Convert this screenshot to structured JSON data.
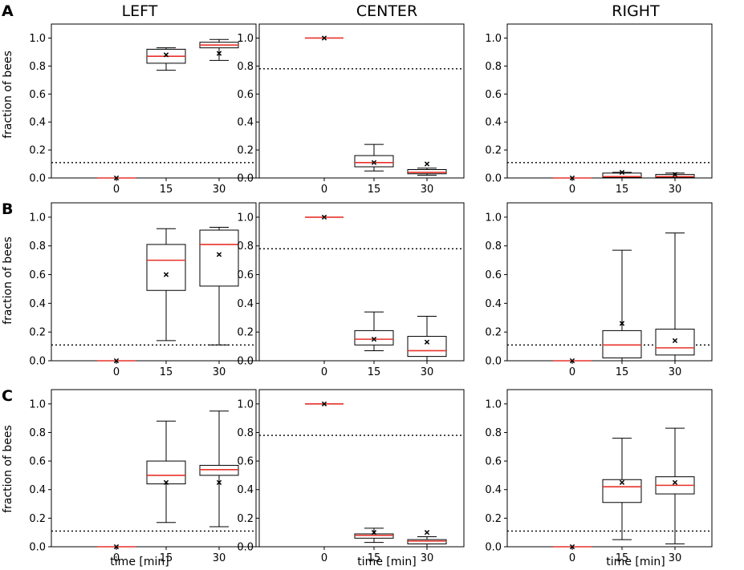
{
  "figure": {
    "column_titles": [
      "LEFT",
      "CENTER",
      "RIGHT"
    ],
    "row_labels": [
      "A",
      "B",
      "C"
    ],
    "ylabel": "fraction of bees",
    "xlabel": "time [min]"
  },
  "colors": {
    "median": "#e8322a",
    "box": "#000000"
  },
  "chart_data": [
    {
      "type": "box",
      "row": "A",
      "title": "LEFT",
      "ylabel": "fraction of bees",
      "xlabel": "",
      "categories": [
        "0",
        "15",
        "30"
      ],
      "ylim": [
        0,
        1.1
      ],
      "yticks": [
        "0.0",
        "0.2",
        "0.4",
        "0.6",
        "0.8",
        "1.0"
      ],
      "ref_line": 0.11,
      "boxes": [
        {
          "label": "0",
          "whislo": 0,
          "q1": 0,
          "med": 0,
          "q3": 0,
          "whishi": 0,
          "mean": 0
        },
        {
          "label": "15",
          "whislo": 0.77,
          "q1": 0.82,
          "med": 0.87,
          "q3": 0.92,
          "whishi": 0.93,
          "mean": 0.88
        },
        {
          "label": "30",
          "whislo": 0.84,
          "q1": 0.93,
          "med": 0.95,
          "q3": 0.97,
          "whishi": 0.99,
          "mean": 0.89
        }
      ]
    },
    {
      "type": "box",
      "row": "A",
      "title": "CENTER",
      "ylabel": "",
      "xlabel": "",
      "categories": [
        "0",
        "15",
        "30"
      ],
      "ylim": [
        0,
        1.1
      ],
      "yticks": [
        "0.0",
        "0.2",
        "0.4",
        "0.6",
        "0.8",
        "1.0"
      ],
      "ref_line": 0.78,
      "boxes": [
        {
          "label": "0",
          "whislo": 1,
          "q1": 1,
          "med": 1,
          "q3": 1,
          "whishi": 1,
          "mean": 1
        },
        {
          "label": "15",
          "whislo": 0.05,
          "q1": 0.08,
          "med": 0.11,
          "q3": 0.16,
          "whishi": 0.24,
          "mean": 0.11
        },
        {
          "label": "30",
          "whislo": 0.02,
          "q1": 0.03,
          "med": 0.04,
          "q3": 0.06,
          "whishi": 0.07,
          "mean": 0.1
        }
      ]
    },
    {
      "type": "box",
      "row": "A",
      "title": "RIGHT",
      "ylabel": "",
      "xlabel": "",
      "categories": [
        "0",
        "15",
        "30"
      ],
      "ylim": [
        0,
        1.1
      ],
      "yticks": [
        "0.0",
        "0.2",
        "0.4",
        "0.6",
        "0.8",
        "1.0"
      ],
      "ref_line": 0.11,
      "boxes": [
        {
          "label": "0",
          "whislo": 0,
          "q1": 0,
          "med": 0,
          "q3": 0,
          "whishi": 0,
          "mean": 0
        },
        {
          "label": "15",
          "whislo": 0,
          "q1": 0.005,
          "med": 0.01,
          "q3": 0.035,
          "whishi": 0.04,
          "mean": 0.04
        },
        {
          "label": "30",
          "whislo": 0,
          "q1": 0.005,
          "med": 0.01,
          "q3": 0.025,
          "whishi": 0.035,
          "mean": 0.025
        }
      ]
    },
    {
      "type": "box",
      "row": "B",
      "title": "LEFT",
      "ylabel": "fraction of bees",
      "xlabel": "",
      "categories": [
        "0",
        "15",
        "30"
      ],
      "ylim": [
        0,
        1.1
      ],
      "yticks": [
        "0.0",
        "0.2",
        "0.4",
        "0.6",
        "0.8",
        "1.0"
      ],
      "ref_line": 0.11,
      "boxes": [
        {
          "label": "0",
          "whislo": 0,
          "q1": 0,
          "med": 0,
          "q3": 0,
          "whishi": 0,
          "mean": 0
        },
        {
          "label": "15",
          "whislo": 0.14,
          "q1": 0.49,
          "med": 0.7,
          "q3": 0.81,
          "whishi": 0.92,
          "mean": 0.6
        },
        {
          "label": "30",
          "whislo": 0.11,
          "q1": 0.52,
          "med": 0.81,
          "q3": 0.91,
          "whishi": 0.93,
          "mean": 0.74
        }
      ]
    },
    {
      "type": "box",
      "row": "B",
      "title": "CENTER",
      "ylabel": "",
      "xlabel": "",
      "categories": [
        "0",
        "15",
        "30"
      ],
      "ylim": [
        0,
        1.1
      ],
      "yticks": [
        "0.0",
        "0.2",
        "0.4",
        "0.6",
        "0.8",
        "1.0"
      ],
      "ref_line": 0.78,
      "boxes": [
        {
          "label": "0",
          "whislo": 1,
          "q1": 1,
          "med": 1,
          "q3": 1,
          "whishi": 1,
          "mean": 1
        },
        {
          "label": "15",
          "whislo": 0.07,
          "q1": 0.11,
          "med": 0.15,
          "q3": 0.21,
          "whishi": 0.34,
          "mean": 0.15
        },
        {
          "label": "30",
          "whislo": 0,
          "q1": 0.03,
          "med": 0.07,
          "q3": 0.17,
          "whishi": 0.31,
          "mean": 0.13
        }
      ]
    },
    {
      "type": "box",
      "row": "B",
      "title": "RIGHT",
      "ylabel": "",
      "xlabel": "",
      "categories": [
        "0",
        "15",
        "30"
      ],
      "ylim": [
        0,
        1.1
      ],
      "yticks": [
        "0.0",
        "0.2",
        "0.4",
        "0.6",
        "0.8",
        "1.0"
      ],
      "ref_line": 0.11,
      "boxes": [
        {
          "label": "0",
          "whislo": 0,
          "q1": 0,
          "med": 0,
          "q3": 0,
          "whishi": 0,
          "mean": 0
        },
        {
          "label": "15",
          "whislo": 0,
          "q1": 0.02,
          "med": 0.11,
          "q3": 0.21,
          "whishi": 0.77,
          "mean": 0.26
        },
        {
          "label": "30",
          "whislo": 0,
          "q1": 0.04,
          "med": 0.09,
          "q3": 0.22,
          "whishi": 0.89,
          "mean": 0.14
        }
      ]
    },
    {
      "type": "box",
      "row": "C",
      "title": "LEFT",
      "ylabel": "fraction of bees",
      "xlabel": "time [min]",
      "categories": [
        "0",
        "15",
        "30"
      ],
      "ylim": [
        0,
        1.1
      ],
      "yticks": [
        "0.0",
        "0.2",
        "0.4",
        "0.6",
        "0.8",
        "1.0"
      ],
      "ref_line": 0.11,
      "boxes": [
        {
          "label": "0",
          "whislo": 0,
          "q1": 0,
          "med": 0,
          "q3": 0,
          "whishi": 0,
          "mean": 0
        },
        {
          "label": "15",
          "whislo": 0.17,
          "q1": 0.44,
          "med": 0.5,
          "q3": 0.6,
          "whishi": 0.88,
          "mean": 0.45
        },
        {
          "label": "30",
          "whislo": 0.14,
          "q1": 0.5,
          "med": 0.54,
          "q3": 0.57,
          "whishi": 0.95,
          "mean": 0.45
        }
      ]
    },
    {
      "type": "box",
      "row": "C",
      "title": "CENTER",
      "ylabel": "",
      "xlabel": "time [min]",
      "categories": [
        "0",
        "15",
        "30"
      ],
      "ylim": [
        0,
        1.1
      ],
      "yticks": [
        "0.0",
        "0.2",
        "0.4",
        "0.6",
        "0.8",
        "1.0"
      ],
      "ref_line": 0.78,
      "boxes": [
        {
          "label": "0",
          "whislo": 1,
          "q1": 1,
          "med": 1,
          "q3": 1,
          "whishi": 1,
          "mean": 1
        },
        {
          "label": "15",
          "whislo": 0.03,
          "q1": 0.06,
          "med": 0.08,
          "q3": 0.09,
          "whishi": 0.13,
          "mean": 0.1
        },
        {
          "label": "30",
          "whislo": 0,
          "q1": 0.02,
          "med": 0.04,
          "q3": 0.05,
          "whishi": 0.07,
          "mean": 0.1
        }
      ]
    },
    {
      "type": "box",
      "row": "C",
      "title": "RIGHT",
      "ylabel": "",
      "xlabel": "time [min]",
      "categories": [
        "0",
        "15",
        "30"
      ],
      "ylim": [
        0,
        1.1
      ],
      "yticks": [
        "0.0",
        "0.2",
        "0.4",
        "0.6",
        "0.8",
        "1.0"
      ],
      "ref_line": 0.11,
      "boxes": [
        {
          "label": "0",
          "whislo": 0,
          "q1": 0,
          "med": 0,
          "q3": 0,
          "whishi": 0,
          "mean": 0
        },
        {
          "label": "15",
          "whislo": 0.05,
          "q1": 0.31,
          "med": 0.42,
          "q3": 0.47,
          "whishi": 0.76,
          "mean": 0.45
        },
        {
          "label": "30",
          "whislo": 0.02,
          "q1": 0.37,
          "med": 0.43,
          "q3": 0.49,
          "whishi": 0.83,
          "mean": 0.45
        }
      ]
    }
  ]
}
